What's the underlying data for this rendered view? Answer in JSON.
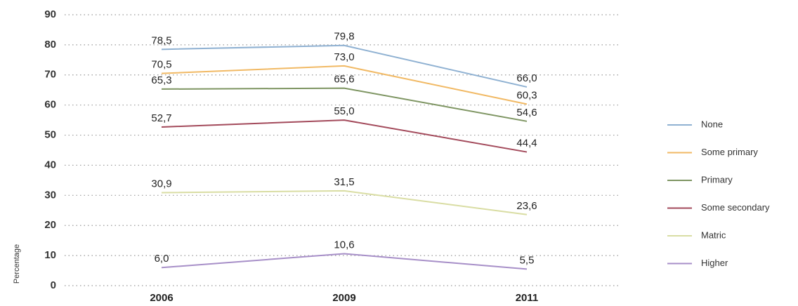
{
  "chart_data": {
    "type": "line",
    "y_label": "Percentage",
    "categories": [
      "2006",
      "2009",
      "2011"
    ],
    "series": [
      {
        "name": "None",
        "color": "#8fb1d2",
        "values": [
          78.5,
          79.8,
          66.0
        ],
        "value_labels": [
          "78,5",
          "79,8",
          "66,0"
        ]
      },
      {
        "name": "Some primary",
        "color": "#f1b964",
        "values": [
          70.5,
          73.0,
          60.3
        ],
        "value_labels": [
          "70,5",
          "73,0",
          "60,3"
        ]
      },
      {
        "name": "Primary",
        "color": "#7e9562",
        "values": [
          65.3,
          65.6,
          54.6
        ],
        "value_labels": [
          "65,3",
          "65,6",
          "54,6"
        ]
      },
      {
        "name": "Some secondary",
        "color": "#a34a5b",
        "values": [
          52.7,
          55.0,
          44.4
        ],
        "value_labels": [
          "52,7",
          "55,0",
          "44,4"
        ]
      },
      {
        "name": "Matric",
        "color": "#d9dda3",
        "values": [
          30.9,
          31.5,
          23.6
        ],
        "value_labels": [
          "30,9",
          "31,5",
          "23,6"
        ]
      },
      {
        "name": "Higher",
        "color": "#a78fc8",
        "values": [
          6.0,
          10.6,
          5.5
        ],
        "value_labels": [
          "6,0",
          "10,6",
          "5,5"
        ]
      }
    ],
    "ylim": [
      0,
      90
    ],
    "yticks": [
      0,
      10,
      20,
      30,
      40,
      50,
      60,
      70,
      80,
      90
    ],
    "grid": true,
    "legend": "right"
  }
}
